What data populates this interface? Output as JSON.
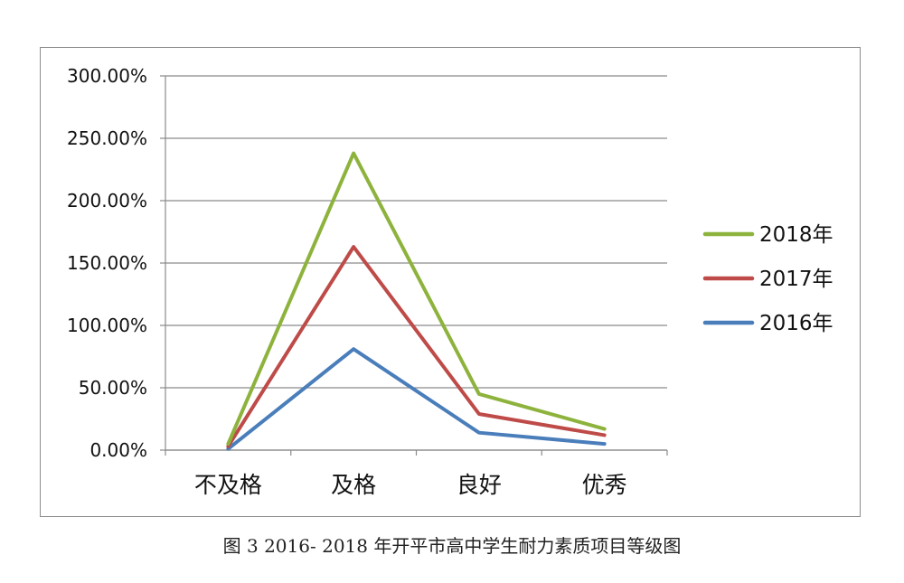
{
  "chart_data": {
    "type": "line",
    "categories": [
      "不及格",
      "及格",
      "良好",
      "优秀"
    ],
    "series": [
      {
        "name": "2018年",
        "color": "#8db33d",
        "values": [
          0.05,
          2.38,
          0.45,
          0.17
        ]
      },
      {
        "name": "2017年",
        "color": "#be4b48",
        "values": [
          0.03,
          1.63,
          0.29,
          0.12
        ]
      },
      {
        "name": "2016年",
        "color": "#4a7ebb",
        "values": [
          0.01,
          0.81,
          0.14,
          0.05
        ]
      }
    ],
    "yticks": [
      "0.00%",
      "50.00%",
      "100.00%",
      "150.00%",
      "200.00%",
      "250.00%",
      "300.00%"
    ],
    "ylim": [
      0,
      3
    ],
    "grid": true,
    "legend": "right",
    "title": "",
    "xlabel": "",
    "ylabel": ""
  },
  "caption": "图 3  2016- 2018 年开平市高中学生耐力素质项目等级图"
}
